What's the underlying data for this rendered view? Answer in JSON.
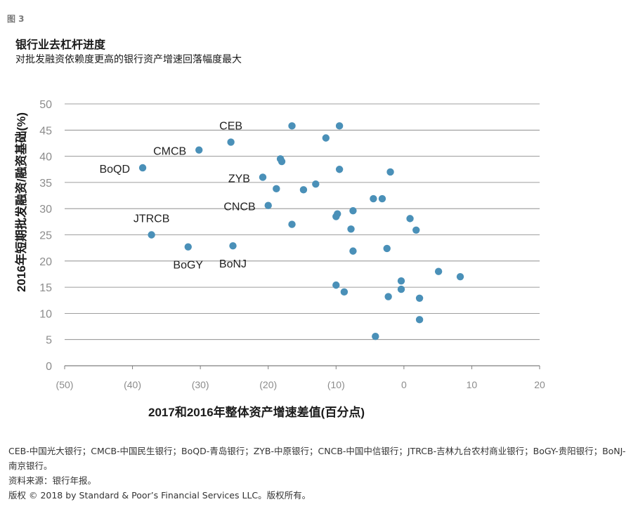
{
  "figure_label": "图 3",
  "title": "银行业去杠杆进度",
  "subtitle": "对批发融资依赖度更高的银行资产增速回落幅度最大",
  "notes": {
    "abbreviations": "CEB-中国光大银行；CMCB-中国民生银行；BoQD-青岛银行；ZYB-中原银行；CNCB-中国中信银行；JTRCB-吉林九台农村商业银行；BoGY-贵阳银行；BoNJ-南京银行。",
    "source": "资料来源：银行年报。",
    "copyright": "版权 © 2018 by Standard & Poor’s Financial Services LLC。版权所有。"
  },
  "colors": {
    "point": "#4a90b8",
    "grid": "#7f7f7f",
    "tick_label": "#8c8c8c",
    "axis_title": "#1a1a1a"
  },
  "chart_data": {
    "type": "scatter",
    "title": "银行业去杠杆进度",
    "subtitle": "对批发融资依赖度更高的银行资产增速回落幅度最大",
    "xlabel": "2017和2016年整体资产增速差值(百分点)",
    "ylabel": "2016年短期批发融资/融资基础(%)",
    "xlim": [
      -50,
      20
    ],
    "ylim": [
      0,
      50
    ],
    "xticks": [
      -50,
      -40,
      -30,
      -20,
      -10,
      0,
      10,
      20
    ],
    "xtick_labels": [
      "(50)",
      "(40)",
      "(30)",
      "(20)",
      "(10)",
      "0",
      "10",
      "20"
    ],
    "yticks": [
      0,
      5,
      10,
      15,
      20,
      25,
      30,
      35,
      40,
      45,
      50
    ],
    "ytick_labels": [
      "0",
      "5",
      "10",
      "15",
      "20",
      "25",
      "30",
      "35",
      "40",
      "45",
      "50"
    ],
    "grid": "horizontal",
    "points": [
      {
        "x": -38.5,
        "y": 37.8,
        "label": "BoQD",
        "label_side": "left"
      },
      {
        "x": -30.2,
        "y": 41.2,
        "label": "CMCB",
        "label_side": "left"
      },
      {
        "x": -37.2,
        "y": 25.0,
        "label": "JTRCB",
        "label_side": "above"
      },
      {
        "x": -31.8,
        "y": 22.7,
        "label": "BoGY",
        "label_side": "below"
      },
      {
        "x": -25.2,
        "y": 22.9,
        "label": "BoNJ",
        "label_side": "below"
      },
      {
        "x": -25.5,
        "y": 42.7,
        "label": "CEB",
        "label_side": "above"
      },
      {
        "x": -20.8,
        "y": 36.0,
        "label": "ZYB",
        "label_side": "left"
      },
      {
        "x": -20.0,
        "y": 30.6,
        "label": "CNCB",
        "label_side": "left"
      },
      {
        "x": -16.5,
        "y": 45.8,
        "label": ""
      },
      {
        "x": -18.2,
        "y": 39.5,
        "label": ""
      },
      {
        "x": -18.0,
        "y": 39.0,
        "label": ""
      },
      {
        "x": -18.8,
        "y": 33.8,
        "label": ""
      },
      {
        "x": -16.5,
        "y": 27.0,
        "label": ""
      },
      {
        "x": -14.8,
        "y": 33.6,
        "label": ""
      },
      {
        "x": -13.0,
        "y": 34.7,
        "label": ""
      },
      {
        "x": -11.5,
        "y": 43.5,
        "label": ""
      },
      {
        "x": -9.5,
        "y": 45.8,
        "label": ""
      },
      {
        "x": -9.5,
        "y": 37.5,
        "label": ""
      },
      {
        "x": -9.8,
        "y": 29.0,
        "label": ""
      },
      {
        "x": -10.0,
        "y": 28.5,
        "label": ""
      },
      {
        "x": -7.5,
        "y": 29.6,
        "label": ""
      },
      {
        "x": -7.8,
        "y": 26.1,
        "label": ""
      },
      {
        "x": -7.5,
        "y": 21.9,
        "label": ""
      },
      {
        "x": -4.5,
        "y": 31.9,
        "label": ""
      },
      {
        "x": -3.2,
        "y": 31.9,
        "label": ""
      },
      {
        "x": -2.0,
        "y": 37.0,
        "label": ""
      },
      {
        "x": -2.5,
        "y": 22.4,
        "label": ""
      },
      {
        "x": -2.3,
        "y": 13.2,
        "label": ""
      },
      {
        "x": -10.0,
        "y": 15.4,
        "label": ""
      },
      {
        "x": -8.8,
        "y": 14.1,
        "label": ""
      },
      {
        "x": -0.4,
        "y": 16.2,
        "label": ""
      },
      {
        "x": -0.4,
        "y": 14.6,
        "label": ""
      },
      {
        "x": -4.2,
        "y": 5.6,
        "label": ""
      },
      {
        "x": 0.9,
        "y": 28.1,
        "label": ""
      },
      {
        "x": 1.8,
        "y": 25.9,
        "label": ""
      },
      {
        "x": 2.3,
        "y": 12.9,
        "label": ""
      },
      {
        "x": 2.3,
        "y": 8.8,
        "label": ""
      },
      {
        "x": 5.1,
        "y": 18.0,
        "label": ""
      },
      {
        "x": 8.3,
        "y": 17.0,
        "label": ""
      }
    ]
  }
}
